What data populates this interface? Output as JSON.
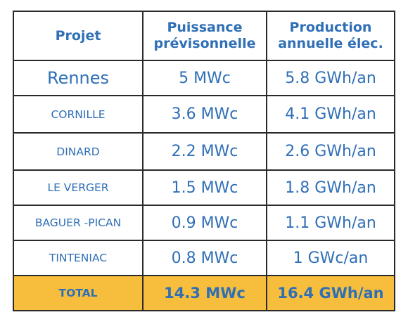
{
  "table": {
    "headers": {
      "projet": "Projet",
      "puissance_line1": "Puissance",
      "puissance_line2": "prévisonnelle",
      "production_line1": "Production",
      "production_line2": "annuelle élec."
    },
    "rows": [
      {
        "projet": "Rennes",
        "puissance": "5 MWc",
        "production": "5.8 GWh/an"
      },
      {
        "projet": "CORNILLE",
        "puissance": "3.6 MWc",
        "production": "4.1 GWh/an"
      },
      {
        "projet": "DINARD",
        "puissance": "2.2 MWc",
        "production": "2.6 GWh/an"
      },
      {
        "projet": "LE VERGER",
        "puissance": "1.5 MWc",
        "production": "1.8 GWh/an"
      },
      {
        "projet": "BAGUER -PICAN",
        "puissance": "0.9 MWc",
        "production": "1.1 GWh/an"
      },
      {
        "projet": "TINTENIAC",
        "puissance": "0.8 MWc",
        "production": "1 GWc/an"
      }
    ],
    "total": {
      "projet": "TOTAL",
      "puissance": "14.3 MWc",
      "production": "16.4 GWh/an"
    }
  },
  "colors": {
    "text": "#2f6fb6",
    "total_background": "#f6be3c",
    "border": "#2a2a2a"
  }
}
